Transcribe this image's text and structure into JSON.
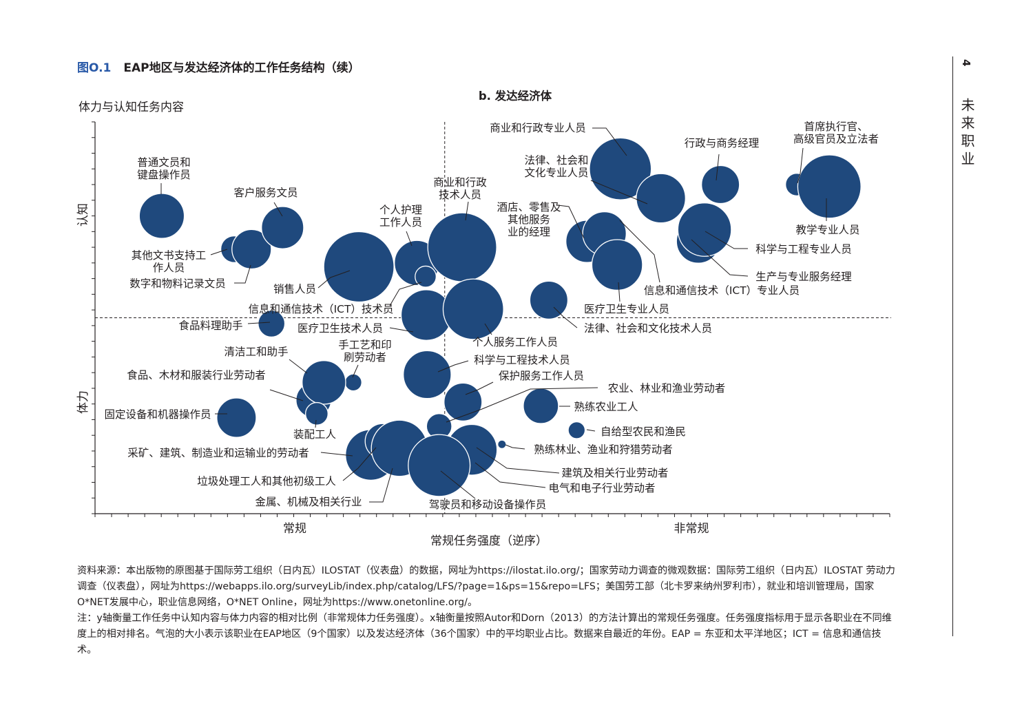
{
  "figure": {
    "number": "图O.1",
    "title": "EAP地区与发达经济体的工作任务结构（续）"
  },
  "side": {
    "page_number": "4",
    "chapter": "未来职业"
  },
  "chart_data": {
    "type": "bubble",
    "subtitle": "b. 发达经济体",
    "y_title": "体力与认知任务内容",
    "y_top_label": "认知",
    "y_bottom_label": "体力",
    "x_title": "常规任务强度（逆序）",
    "x_left_label": "常规",
    "x_right_label": "非常规",
    "xlim": [
      0,
      100
    ],
    "ylim": [
      0,
      100
    ],
    "reference_lines": {
      "x": 44,
      "y": 50
    },
    "bubble_color": "#1f497d",
    "bubbles": [
      {
        "label": "普通文员和键盘操作员",
        "x": 8.4,
        "y": 76,
        "size": 32
      },
      {
        "label": "其他文书支持工作人员",
        "x": 17.5,
        "y": 67.5,
        "size": 19
      },
      {
        "label": "数字和物料记录文员",
        "x": 19.7,
        "y": 67.5,
        "size": 28
      },
      {
        "label": "客户服务文员",
        "x": 23.6,
        "y": 73,
        "size": 30
      },
      {
        "label": "销售人员",
        "x": 33.2,
        "y": 63,
        "size": 50
      },
      {
        "label": "个人护理工作人员",
        "x": 40.5,
        "y": 64,
        "size": 32
      },
      {
        "label": "商业和行政技术人员",
        "x": 46.2,
        "y": 68,
        "size": 49
      },
      {
        "label": "信息和通信技术（ICT）技术员",
        "x": 41.6,
        "y": 60.5,
        "size": 15
      },
      {
        "label": "医疗卫生技术人员",
        "x": 41.7,
        "y": 50.7,
        "size": 36
      },
      {
        "label": "个人服务工作人员",
        "x": 47.6,
        "y": 52.2,
        "size": 43
      },
      {
        "label": "食品料理助手",
        "x": 22.2,
        "y": 48.5,
        "size": 19
      },
      {
        "label": "手工艺和印刷劳动者",
        "x": 32.5,
        "y": 33.5,
        "size": 12
      },
      {
        "label": "清洁工和助手",
        "x": 27.5,
        "y": 29,
        "size": 25
      },
      {
        "label": "食品、木材和服装行业劳动者",
        "x": 28.8,
        "y": 33.5,
        "size": 31
      },
      {
        "label": "装配工人",
        "x": 27.9,
        "y": 25.5,
        "size": 16
      },
      {
        "label": "固定设备和机器操作员",
        "x": 17.8,
        "y": 24.5,
        "size": 28
      },
      {
        "label": "科学与工程技术人员",
        "x": 41.8,
        "y": 35.5,
        "size": 34
      },
      {
        "label": "保护服务工作人员",
        "x": 46.3,
        "y": 28.5,
        "size": 27
      },
      {
        "label": "农业、林业和渔业劳动者",
        "x": 43.3,
        "y": 22.3,
        "size": 18
      },
      {
        "label": "采矿、建筑、制造业和运输业的劳动者",
        "x": 34.7,
        "y": 15,
        "size": 36
      },
      {
        "label": "垃圾处理工人和其他初级工人",
        "x": 36.2,
        "y": 18.5,
        "size": 25
      },
      {
        "label": "金属、机械及相关行业",
        "x": 38.3,
        "y": 16.7,
        "size": 40
      },
      {
        "label": "建筑及相关行业劳动者",
        "x": 46.9,
        "y": 16.3,
        "size": 24
      },
      {
        "label": "电气和电子行业劳动者",
        "x": 47.4,
        "y": 16.3,
        "size": 36
      },
      {
        "label": "驾驶员和移动设备操作员",
        "x": 43.3,
        "y": 12.3,
        "size": 44
      },
      {
        "label": "熟练林业、渔业和狩猎劳动者",
        "x": 51.2,
        "y": 17.7,
        "size": 6
      },
      {
        "label": "熟练农业工人",
        "x": 56.1,
        "y": 27.5,
        "size": 25
      },
      {
        "label": "自给型农民和渔民",
        "x": 60.6,
        "y": 21.3,
        "size": 12
      },
      {
        "label": "医疗卫生专业人员",
        "x": 57.1,
        "y": 54.5,
        "size": 27
      },
      {
        "label": "商业和行政专业人员",
        "x": 66.1,
        "y": 88,
        "size": 44
      },
      {
        "label": "法律、社会和文化技术人员",
        "x": 61.9,
        "y": 69.5,
        "size": 30
      },
      {
        "label": "酒店、零售及其他服务业的经理",
        "x": 64.1,
        "y": 71.5,
        "size": 31
      },
      {
        "label": "信息和通信技术（ICT）专业人员",
        "x": 65.7,
        "y": 63.5,
        "size": 36
      },
      {
        "label": "法律、社会和文化专业人员",
        "x": 71.2,
        "y": 80.5,
        "size": 35
      },
      {
        "label": "生产与专业服务经理",
        "x": 75.9,
        "y": 69.5,
        "size": 31
      },
      {
        "label": "科学与工程专业人员",
        "x": 76.7,
        "y": 72.5,
        "size": 38
      },
      {
        "label": "行政与商务经理",
        "x": 78.7,
        "y": 84,
        "size": 27
      },
      {
        "label": "首席执行官、高级官员及立法者",
        "x": 88.3,
        "y": 84,
        "size": 16
      },
      {
        "label": "教学专业人员",
        "x": 92.4,
        "y": 83.5,
        "size": 45
      }
    ]
  },
  "notes": {
    "source": "资料来源：本出版物的原图基于国际劳工组织（日内瓦）ILOSTAT（仪表盘）的数据，网址为https://ilostat.ilo.org/；国家劳动力调查的微观数据：国际劳工组织（日内瓦）ILOSTAT 劳动力调查（仪表盘），网址为https://webapps.ilo.org/surveyLib/index.php/catalog/LFS/?page=1&ps=15&repo=LFS；美国劳工部（北卡罗来纳州罗利市），就业和培训管理局，国家O*NET发展中心，职业信息网络，O*NET Online，网址为https://www.onetonline.org/。",
    "note": "注：y轴衡量工作任务中认知内容与体力内容的相对比例（非常规体力任务强度）。x轴衡量按照Autor和Dorn（2013）的方法计算出的常规任务强度。任务强度指标用于显示各职业在不同维度上的相对排名。气泡的大小表示该职业在EAP地区（9个国家）以及发达经济体（36个国家）中的平均职业占比。数据来自最近的年份。EAP = 东亚和太平洋地区；ICT = 信息和通信技术。"
  }
}
